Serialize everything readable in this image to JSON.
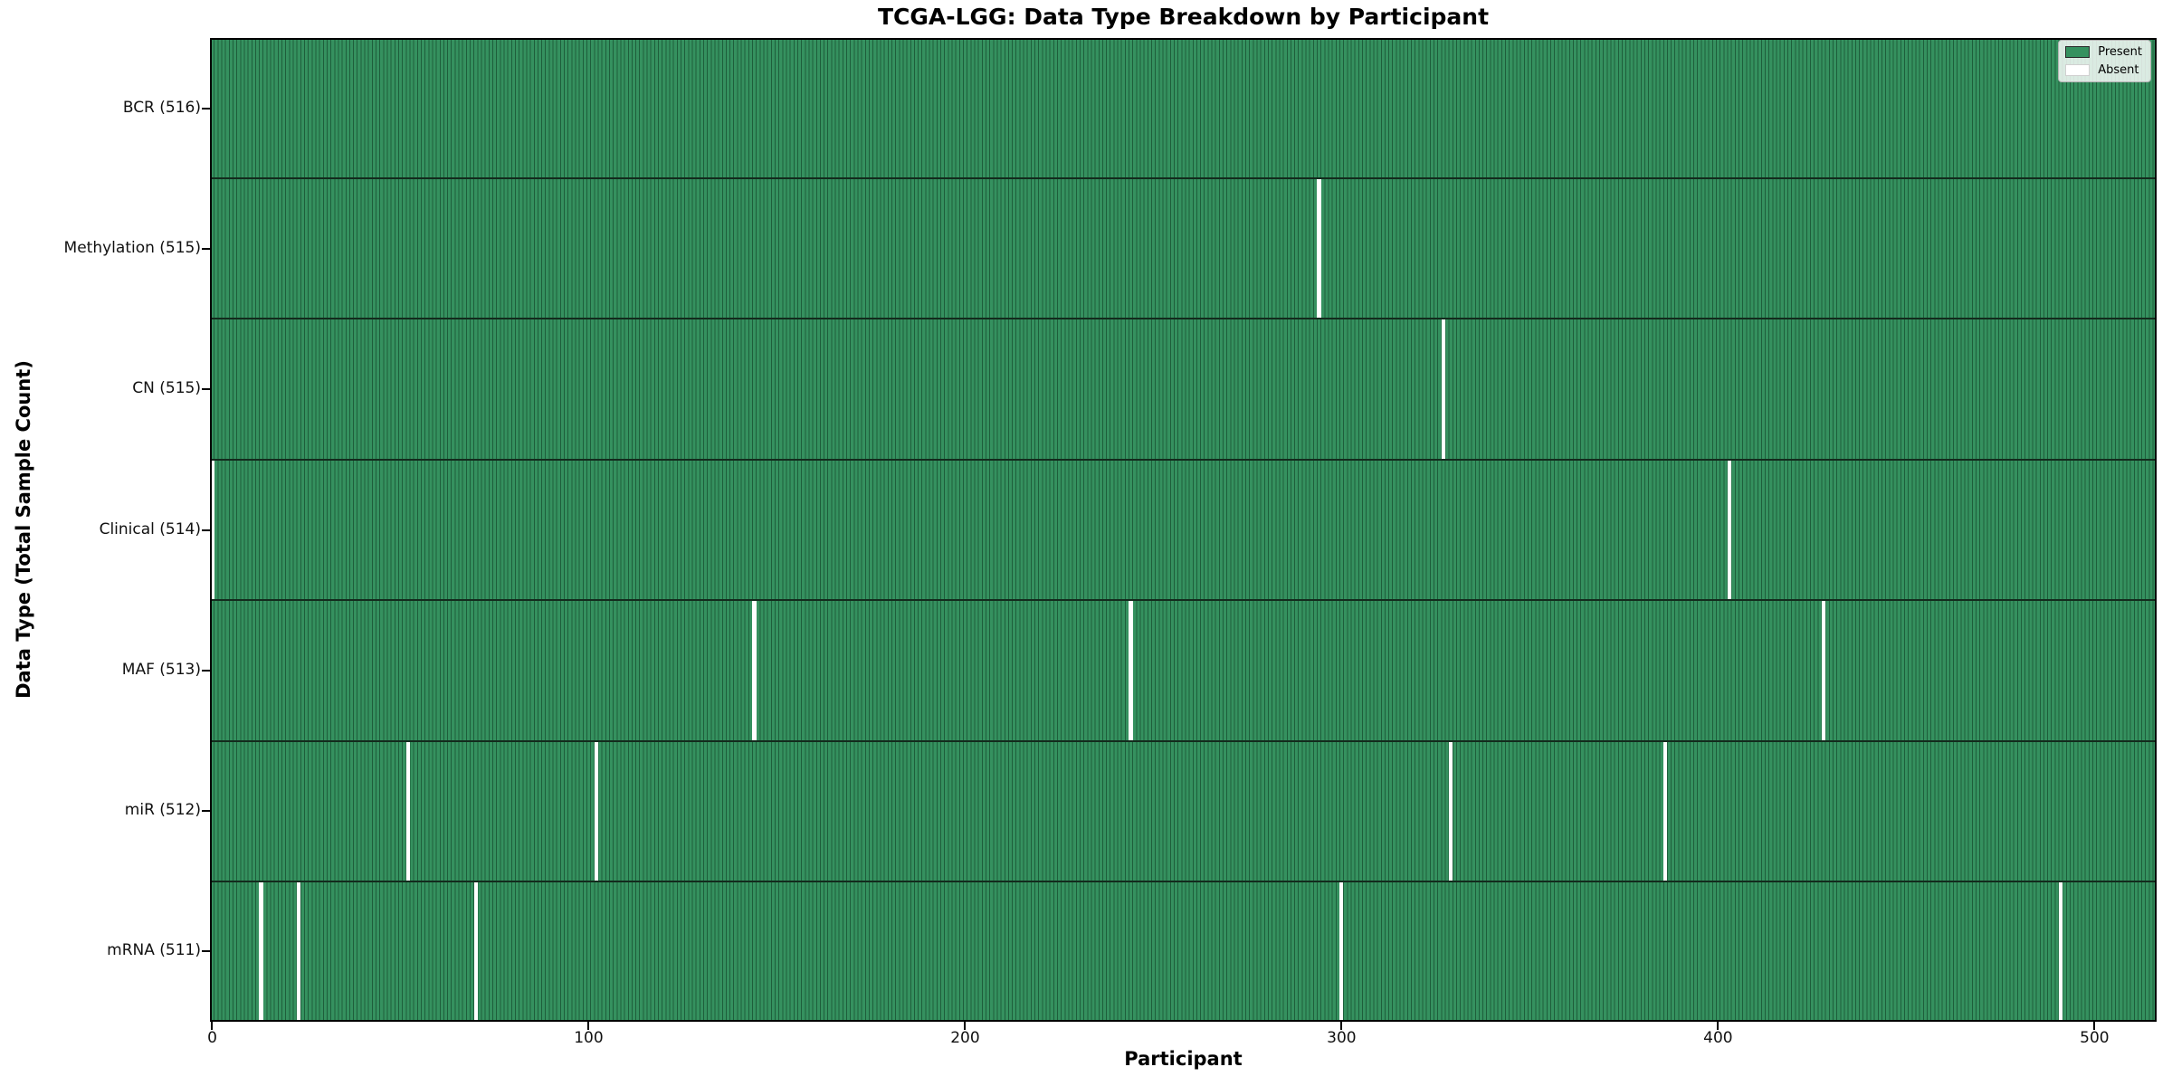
{
  "chart_data": {
    "type": "heatmap",
    "title": "TCGA-LGG: Data Type Breakdown by Participant",
    "xlabel": "Participant",
    "ylabel": "Data Type (Total Sample Count)",
    "x_ticks": [
      0,
      100,
      200,
      300,
      400,
      500
    ],
    "xlim": [
      -0.6,
      516.5
    ],
    "n_participants": 516,
    "grid": false,
    "legend_position": "upper right",
    "legend": [
      {
        "label": "Present",
        "color": "#35915f",
        "edge": "#2a2a2a"
      },
      {
        "label": "Absent",
        "color": "#ffffff",
        "edge": "#d0d0d0"
      }
    ],
    "rows": [
      {
        "label": "BCR (516)",
        "data_type": "BCR",
        "total": 516,
        "absent_participants": []
      },
      {
        "label": "Methylation (515)",
        "data_type": "Methylation",
        "total": 515,
        "absent_participants": [
          294
        ]
      },
      {
        "label": "CN (515)",
        "data_type": "CN",
        "total": 515,
        "absent_participants": [
          327
        ]
      },
      {
        "label": "Clinical (514)",
        "data_type": "Clinical",
        "total": 514,
        "absent_participants": [
          0,
          403
        ]
      },
      {
        "label": "MAF (513)",
        "data_type": "MAF",
        "total": 513,
        "absent_participants": [
          144,
          244,
          428
        ]
      },
      {
        "label": "miR (512)",
        "data_type": "miR",
        "total": 512,
        "absent_participants": [
          52,
          102,
          329,
          386
        ]
      },
      {
        "label": "mRNA (511)",
        "data_type": "mRNA",
        "total": 511,
        "absent_participants": [
          13,
          23,
          70,
          300,
          491
        ]
      }
    ],
    "colors": {
      "present": "#35915f",
      "bar_edge": "#1e5e3b",
      "row_divider": "#132b1d",
      "absent": "#ffffff",
      "axis": "#000000",
      "background": "#ffffff"
    }
  }
}
